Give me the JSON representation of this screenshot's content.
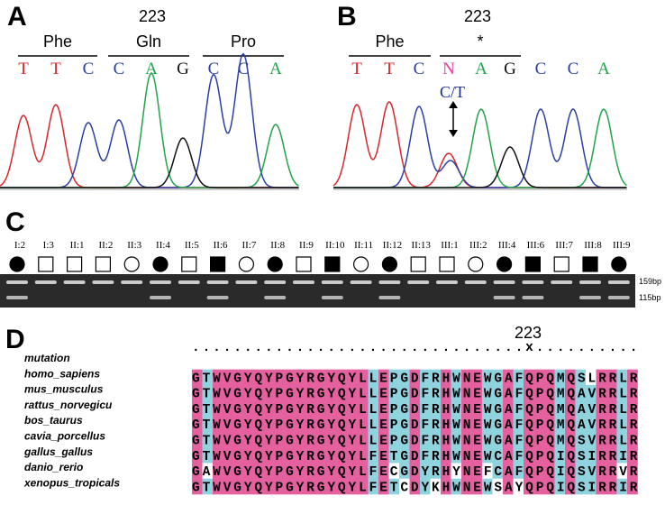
{
  "panels": {
    "a": {
      "label": "A",
      "position": "223",
      "codons": [
        "Phe",
        "Gln",
        "Pro"
      ],
      "bases": [
        "T",
        "T",
        "C",
        "C",
        "A",
        "G",
        "C",
        "C",
        "A"
      ]
    },
    "b": {
      "label": "B",
      "position": "223",
      "codons": [
        "Phe",
        "*"
      ],
      "bases": [
        "T",
        "T",
        "C",
        "N",
        "A",
        "G",
        "C",
        "C",
        "A"
      ],
      "call": "C/T"
    },
    "c": {
      "label": "C",
      "samples": [
        {
          "id": "I:2",
          "shape": "circle",
          "filled": true
        },
        {
          "id": "I:3",
          "shape": "square",
          "filled": false
        },
        {
          "id": "II:1",
          "shape": "square",
          "filled": false
        },
        {
          "id": "II:2",
          "shape": "square",
          "filled": false
        },
        {
          "id": "II:3",
          "shape": "circle",
          "filled": false
        },
        {
          "id": "II:4",
          "shape": "circle",
          "filled": true
        },
        {
          "id": "II:5",
          "shape": "square",
          "filled": false
        },
        {
          "id": "II:6",
          "shape": "square",
          "filled": true
        },
        {
          "id": "II:7",
          "shape": "circle",
          "filled": false
        },
        {
          "id": "II:8",
          "shape": "circle",
          "filled": true
        },
        {
          "id": "II:9",
          "shape": "square",
          "filled": false
        },
        {
          "id": "II:10",
          "shape": "square",
          "filled": true
        },
        {
          "id": "II:11",
          "shape": "circle",
          "filled": false
        },
        {
          "id": "II:12",
          "shape": "circle",
          "filled": true
        },
        {
          "id": "II:13",
          "shape": "square",
          "filled": false
        },
        {
          "id": "III:1",
          "shape": "square",
          "filled": false
        },
        {
          "id": "III:2",
          "shape": "circle",
          "filled": false
        },
        {
          "id": "III:4",
          "shape": "circle",
          "filled": true
        },
        {
          "id": "III:6",
          "shape": "square",
          "filled": true
        },
        {
          "id": "III:7",
          "shape": "square",
          "filled": false
        },
        {
          "id": "III:8",
          "shape": "square",
          "filled": true
        },
        {
          "id": "III:9",
          "shape": "circle",
          "filled": true
        }
      ],
      "markers": [
        "159bp",
        "115bp"
      ]
    },
    "d": {
      "label": "D",
      "position": "223",
      "mutation_row": "................................x..........",
      "row_names": [
        "mutation",
        "homo_sapiens",
        "mus_musculus",
        "rattus_norvegicu",
        "bos_taurus",
        "cavia_porcellus",
        "gallus_gallus",
        "danio_rerio",
        "xenopus_tropicals"
      ],
      "sequences": [
        "GTWVGYQYPGYRGYQYLLEPGDFRHWNEWGAFQPQMQSLRRLR",
        "GTWVGYQYPGYRGYQYLLEPGDFRHWNEWGAFQPQMQAVRRLR",
        "GTWVGYQYPGYRGYQYLLEPGDFRHWNEWGAFQPQMQAVRRLR",
        "GTWVGYQYPGYRGYQYLLEPGDFRHWNEWGAFQPQMQAVRRLR",
        "GTWVGYQYPGYRGYQYLLEPGDFRHWNEWGAFQPQMQSVRRLR",
        "GTWVGYQYPGYRGYQYLFETGDFRHWNEWCAFQPQIQSIRRIR",
        "GAWVGYQYPGYRGYQYLFECGDYRHYNEFCAFQPQIQSVRRVR",
        "GTWVGYQYPGYRGYQYLFETCDYKHWNEWSAYQPQIQSIRRIR"
      ]
    }
  }
}
